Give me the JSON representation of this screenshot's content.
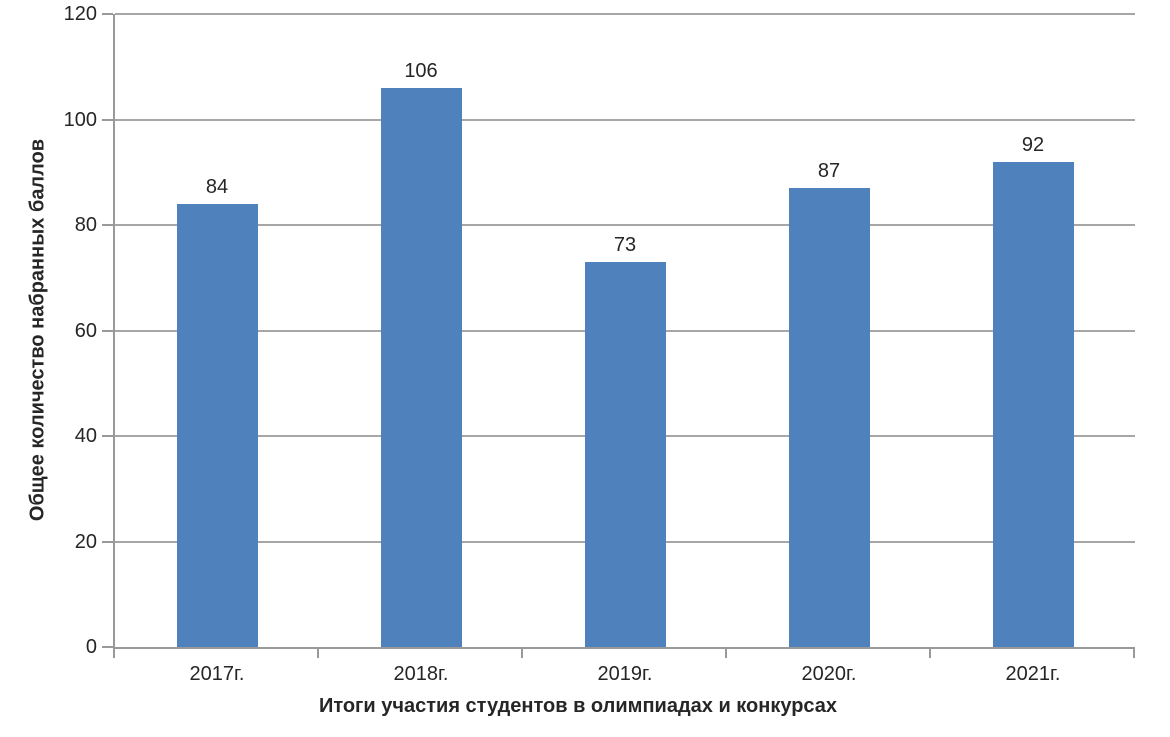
{
  "figure": {
    "background": "#ffffff"
  },
  "chart_data": {
    "type": "bar",
    "title": "",
    "categories": [
      "2017г.",
      "2018г.",
      "2019г.",
      "2020г.",
      "2021г."
    ],
    "values": [
      84,
      106,
      73,
      87,
      92
    ],
    "data_labels": [
      "84",
      "106",
      "73",
      "87",
      "92"
    ],
    "xlabel": "Итоги участия студентов в олимпиадах и конкурсах",
    "ylabel": "Общее количество набранных баллов",
    "ylim": [
      0,
      120
    ],
    "yticks": [
      0,
      20,
      40,
      60,
      80,
      100,
      120
    ],
    "grid": "horizontal",
    "legend": "none",
    "colors": {
      "bar": "#4F81BD",
      "gridline": "#a6a6a6",
      "axis": "#999999",
      "text": "#262626"
    }
  }
}
